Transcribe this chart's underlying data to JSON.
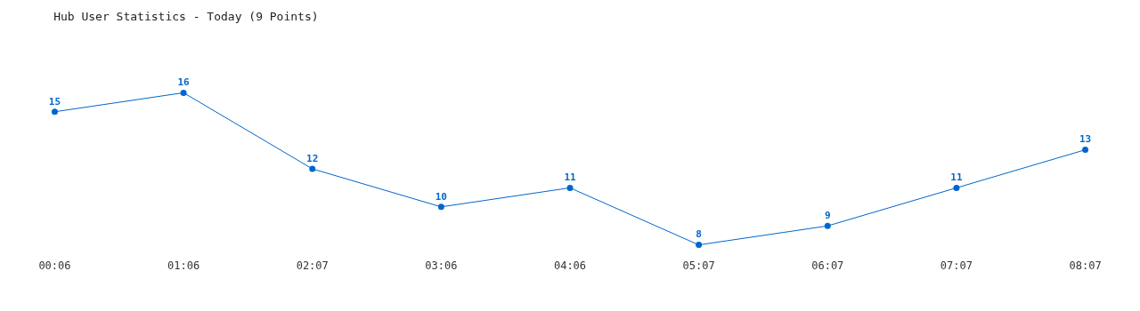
{
  "chart_data": {
    "type": "line",
    "title": "Hub User Statistics - Today (9 Points)",
    "categories": [
      "00:06",
      "01:06",
      "02:07",
      "03:06",
      "04:06",
      "05:07",
      "06:07",
      "07:07",
      "08:07"
    ],
    "series": [
      {
        "color": "#0066cc",
        "values": [
          15,
          16,
          12,
          10,
          11,
          8,
          9,
          11,
          13
        ]
      }
    ],
    "data_labels": true,
    "marker": "circle",
    "line_style": "solid"
  }
}
